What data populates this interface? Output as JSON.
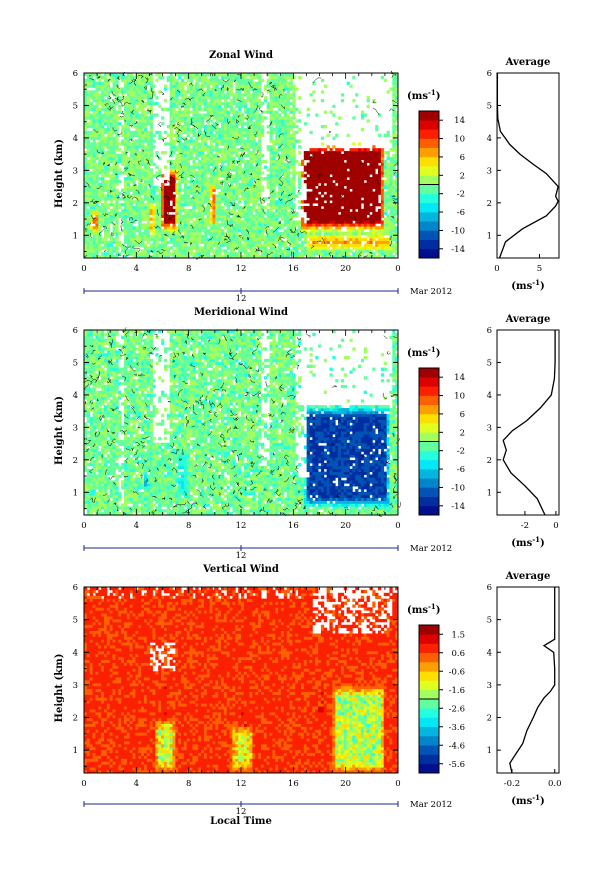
{
  "chart_data": [
    {
      "type": "heatmap",
      "title": "Zonal Wind",
      "ylabel": "Height (km)",
      "unit_label": "(ms",
      "unit_exp": "-1",
      "date_label": "Mar 2012",
      "bottom_tick": "12",
      "x_ticks": [
        "0",
        "4",
        "8",
        "12",
        "16",
        "20",
        "0"
      ],
      "y_ticks": [
        "1",
        "2",
        "3",
        "4",
        "5",
        "6"
      ],
      "colorbar_ticks": [
        "14",
        "10",
        "6",
        "2",
        "-2",
        "-6",
        "-10",
        "-14"
      ],
      "colorbar_range": [
        -16,
        16
      ],
      "xlim": [
        0,
        24
      ],
      "ylim": [
        0.3,
        6
      ],
      "features": [
        {
          "t0": 0.5,
          "t1": 1.2,
          "z0": 1.0,
          "z1": 1.8,
          "value": 12
        },
        {
          "t0": 4.9,
          "t1": 5.5,
          "z0": 1.0,
          "z1": 2.0,
          "value": 10
        },
        {
          "t0": 5.8,
          "t1": 7.2,
          "z0": 1.1,
          "z1": 3.1,
          "value": 16
        },
        {
          "t0": 9.6,
          "t1": 10.1,
          "z0": 1.3,
          "z1": 2.6,
          "value": 16
        },
        {
          "t0": 16.5,
          "t1": 23.0,
          "z0": 1.1,
          "z1": 3.9,
          "value": 16
        },
        {
          "t0": 17.0,
          "t1": 23.5,
          "z0": 0.5,
          "z1": 1.1,
          "value": 9
        }
      ],
      "average_profile": {
        "title": "Average",
        "xlabel": "(ms",
        "xlabel_exp": "-1",
        "x_ticks": [
          "0",
          "5"
        ],
        "xlim": [
          0,
          7.3
        ],
        "z": [
          0.3,
          0.8,
          1.2,
          1.6,
          1.9,
          2.05,
          2.2,
          2.5,
          2.9,
          3.2,
          3.5,
          3.8,
          4.2,
          4.6,
          5.0,
          6.0
        ],
        "values": [
          0.3,
          1.0,
          3.0,
          5.8,
          6.9,
          7.2,
          6.9,
          7.2,
          5.8,
          4.2,
          2.7,
          1.5,
          0.4,
          0.1,
          0.05,
          0.05
        ]
      }
    },
    {
      "type": "heatmap",
      "title": "Meridional Wind",
      "ylabel": "Height (km)",
      "unit_label": "(ms",
      "unit_exp": "-1",
      "date_label": "Mar 2012",
      "bottom_tick": "12",
      "x_ticks": [
        "0",
        "4",
        "8",
        "12",
        "16",
        "20",
        "0"
      ],
      "y_ticks": [
        "1",
        "2",
        "3",
        "4",
        "5",
        "6"
      ],
      "colorbar_ticks": [
        "14",
        "10",
        "6",
        "2",
        "-2",
        "-6",
        "-10",
        "-14"
      ],
      "colorbar_range": [
        -16,
        16
      ],
      "xlim": [
        0,
        24
      ],
      "ylim": [
        0.3,
        6
      ],
      "features": [
        {
          "t0": 16.8,
          "t1": 23.4,
          "z0": 0.5,
          "z1": 3.7,
          "value": -12
        },
        {
          "t0": 7.0,
          "t1": 8.0,
          "z0": 0.8,
          "z1": 2.4,
          "value": -4
        },
        {
          "t0": 4.5,
          "t1": 5.0,
          "z0": 1.0,
          "z1": 1.6,
          "value": -9
        }
      ],
      "average_profile": {
        "title": "Average",
        "xlabel": "(ms",
        "xlabel_exp": "-1",
        "x_ticks": [
          "-2",
          "0"
        ],
        "xlim": [
          -3.8,
          0.2
        ],
        "z": [
          0.3,
          0.8,
          1.2,
          1.6,
          2.0,
          2.3,
          2.6,
          2.9,
          3.2,
          3.6,
          4.0,
          4.5,
          5.0,
          6.0
        ],
        "values": [
          -0.7,
          -1.2,
          -2.0,
          -2.9,
          -3.4,
          -3.2,
          -3.4,
          -2.8,
          -1.9,
          -1.0,
          -0.3,
          -0.1,
          -0.05,
          -0.05
        ]
      }
    },
    {
      "type": "heatmap",
      "title": "Vertical Wind",
      "ylabel": "Height (km)",
      "xlabel": "Local Time",
      "unit_label": "(ms",
      "unit_exp": "-1",
      "date_label": "Mar 2012",
      "bottom_tick": "12",
      "x_ticks": [
        "0",
        "4",
        "8",
        "12",
        "16",
        "20",
        "0"
      ],
      "y_ticks": [
        "1",
        "2",
        "3",
        "4",
        "5",
        "6"
      ],
      "colorbar_ticks": [
        "1.5",
        "0.6",
        "-0.6",
        "-1.6",
        "-2.6",
        "-3.6",
        "-4.6",
        "-5.6"
      ],
      "colorbar_range": [
        -6.0,
        2.0
      ],
      "xlim": [
        0,
        24
      ],
      "ylim": [
        0.3,
        6
      ],
      "features": [
        {
          "t0": 5.9,
          "t1": 6.3,
          "z0": 1.5,
          "z1": 3.0,
          "value": 1.5
        },
        {
          "t0": 12.0,
          "t1": 12.5,
          "z0": 1.3,
          "z1": 2.2,
          "value": 0.9
        },
        {
          "t0": 17.8,
          "t1": 18.4,
          "z0": 2.0,
          "z1": 3.0,
          "value": 1.0
        },
        {
          "t0": 5.4,
          "t1": 7.0,
          "z0": 0.3,
          "z1": 2.0,
          "value": -1.4
        },
        {
          "t0": 11.2,
          "t1": 13.0,
          "z0": 0.3,
          "z1": 1.8,
          "value": -1.0
        },
        {
          "t0": 19.0,
          "t1": 23.0,
          "z0": 0.3,
          "z1": 3.0,
          "value": -1.6
        }
      ],
      "average_profile": {
        "title": "Average",
        "xlabel": "(ms",
        "xlabel_exp": "-1",
        "x_ticks": [
          "-0.2",
          "0.0"
        ],
        "xlim": [
          -0.27,
          0.02
        ],
        "z": [
          0.3,
          0.6,
          0.9,
          1.2,
          1.6,
          2.0,
          2.3,
          2.6,
          2.8,
          3.0,
          3.5,
          4.0,
          4.2,
          4.4,
          5.0,
          6.0
        ],
        "values": [
          -0.2,
          -0.21,
          -0.18,
          -0.15,
          -0.13,
          -0.1,
          -0.08,
          -0.05,
          -0.02,
          0.0,
          0.0,
          -0.005,
          -0.05,
          0.0,
          0.0,
          0.0
        ]
      }
    }
  ]
}
